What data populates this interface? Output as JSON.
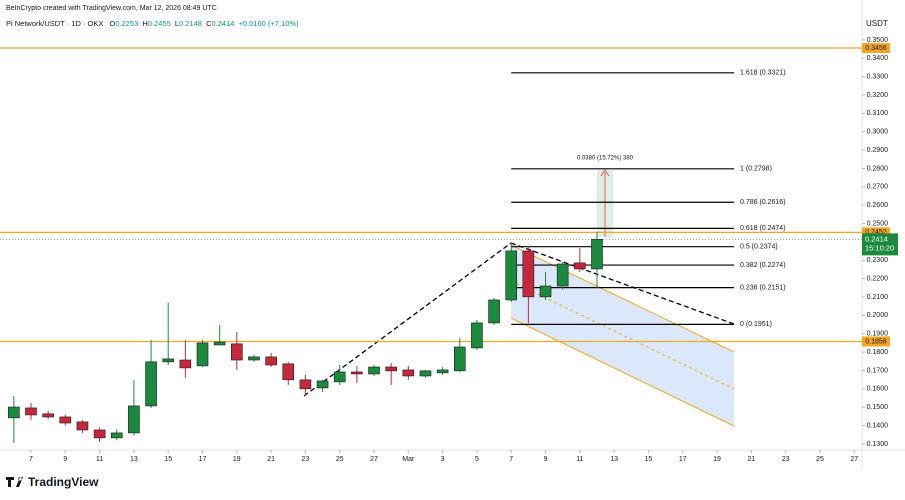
{
  "credit": "BeInCrypto created with TradingView.com, Mar 12, 2026 08:49 UTC",
  "symbol": "Pi Network/USDT · 1D · OKX",
  "logo": "TradingView",
  "chart_data": {
    "type": "candlestick",
    "currency": "USDT",
    "ohlc_labels": [
      "O",
      "H",
      "L",
      "C"
    ],
    "change": "+0.0160 (+7.10%)",
    "countdown": "15:10:20",
    "up_color": "#1b8a3e",
    "down_color": "#c4283c",
    "level_color": "#f5a623",
    "x": [
      "Feb 6",
      "Feb 7",
      "Feb 8",
      "Feb 9",
      "Feb 10",
      "Feb 11",
      "Feb 12",
      "Feb 13",
      "Feb 14",
      "Feb 15",
      "Feb 16",
      "Feb 17",
      "Feb 18",
      "Feb 19",
      "Feb 20",
      "Feb 21",
      "Feb 22",
      "Feb 23",
      "Feb 24",
      "Feb 25",
      "Feb 26",
      "Feb 27",
      "Feb 28",
      "Mar 1",
      "Mar 2",
      "Mar 3",
      "Mar 4",
      "Mar 5",
      "Mar 6",
      "Mar 7",
      "Mar 8",
      "Mar 9",
      "Mar 10",
      "Mar 11",
      "Mar 12"
    ],
    "open": [
      0.1442,
      0.1496,
      0.1464,
      0.1447,
      0.142,
      0.1376,
      0.1333,
      0.136,
      0.1507,
      0.1747,
      0.1757,
      0.1725,
      0.1839,
      0.1845,
      0.1757,
      0.1774,
      0.1736,
      0.1649,
      0.1605,
      0.1638,
      0.1692,
      0.1681,
      0.1719,
      0.1703,
      0.167,
      0.1687,
      0.1698,
      0.1823,
      0.1959,
      0.2084,
      0.2351,
      0.2101,
      0.216,
      0.2286,
      0.2253
    ],
    "high": [
      0.1561,
      0.1523,
      0.148,
      0.146,
      0.143,
      0.139,
      0.138,
      0.1649,
      0.1866,
      0.2068,
      0.1866,
      0.1866,
      0.1948,
      0.191,
      0.1785,
      0.1796,
      0.1747,
      0.1676,
      0.1649,
      0.173,
      0.1725,
      0.173,
      0.1741,
      0.1725,
      0.1703,
      0.1719,
      0.1877,
      0.1975,
      0.2095,
      0.2395,
      0.2378,
      0.2237,
      0.2291,
      0.2367,
      0.2455
    ],
    "low": [
      0.1306,
      0.1431,
      0.1435,
      0.14,
      0.136,
      0.131,
      0.132,
      0.1344,
      0.1496,
      0.173,
      0.166,
      0.1719,
      0.1839,
      0.1703,
      0.1747,
      0.1719,
      0.1621,
      0.1561,
      0.1583,
      0.1621,
      0.1632,
      0.167,
      0.1621,
      0.1649,
      0.166,
      0.1676,
      0.1692,
      0.1812,
      0.1948,
      0.2073,
      0.1959,
      0.2084,
      0.2139,
      0.2237,
      0.2148
    ],
    "close": [
      0.1501,
      0.1458,
      0.1447,
      0.1414,
      0.1376,
      0.1333,
      0.136,
      0.1507,
      0.1747,
      0.1763,
      0.1714,
      0.185,
      0.1855,
      0.1757,
      0.1774,
      0.173,
      0.1649,
      0.16,
      0.1643,
      0.1692,
      0.1681,
      0.1719,
      0.1698,
      0.167,
      0.1698,
      0.1703,
      0.1828,
      0.1959,
      0.2084,
      0.2351,
      0.2101,
      0.216,
      0.228,
      0.2253,
      0.2414
    ],
    "xlim": [
      "Feb 5",
      "Mar 28"
    ],
    "xticks": [
      {
        "value": "Feb 7",
        "label": "7"
      },
      {
        "value": "Feb 9",
        "label": "9"
      },
      {
        "value": "Feb 11",
        "label": "11"
      },
      {
        "value": "Feb 13",
        "label": "13"
      },
      {
        "value": "Feb 15",
        "label": "15"
      },
      {
        "value": "Feb 17",
        "label": "17"
      },
      {
        "value": "Feb 19",
        "label": "19"
      },
      {
        "value": "Feb 21",
        "label": "21"
      },
      {
        "value": "Feb 23",
        "label": "23"
      },
      {
        "value": "Feb 25",
        "label": "25"
      },
      {
        "value": "Feb 27",
        "label": "27"
      },
      {
        "value": "Mar 1",
        "label": "Mar"
      },
      {
        "value": "Mar 3",
        "label": "3"
      },
      {
        "value": "Mar 5",
        "label": "5"
      },
      {
        "value": "Mar 7",
        "label": "7"
      },
      {
        "value": "Mar 9",
        "label": "9"
      },
      {
        "value": "Mar 11",
        "label": "11"
      },
      {
        "value": "Mar 13",
        "label": "13"
      },
      {
        "value": "Mar 15",
        "label": "15"
      },
      {
        "value": "Mar 17",
        "label": "17"
      },
      {
        "value": "Mar 19",
        "label": "19"
      },
      {
        "value": "Mar 21",
        "label": "21"
      },
      {
        "value": "Mar 23",
        "label": "23"
      },
      {
        "value": "Mar 25",
        "label": "25"
      },
      {
        "value": "Mar 27",
        "label": "27"
      }
    ],
    "ylim": [
      0.1267,
      0.3554
    ],
    "yticks": [
      {
        "value": 0.13,
        "label": "0.1300"
      },
      {
        "value": 0.14,
        "label": "0.1400"
      },
      {
        "value": 0.15,
        "label": "0.1500"
      },
      {
        "value": 0.16,
        "label": "0.1600"
      },
      {
        "value": 0.17,
        "label": "0.1700"
      },
      {
        "value": 0.18,
        "label": "0.1800"
      },
      {
        "value": 0.19,
        "label": "0.1900"
      },
      {
        "value": 0.2,
        "label": "0.2000"
      },
      {
        "value": 0.21,
        "label": "0.2100"
      },
      {
        "value": 0.22,
        "label": "0.2200"
      },
      {
        "value": 0.23,
        "label": "0.2300"
      },
      {
        "value": 0.24,
        "label": "0.2400"
      },
      {
        "value": 0.25,
        "label": "0.2500"
      },
      {
        "value": 0.26,
        "label": "0.2600"
      },
      {
        "value": 0.27,
        "label": "0.2700"
      },
      {
        "value": 0.28,
        "label": "0.2800"
      },
      {
        "value": 0.29,
        "label": "0.2900"
      },
      {
        "value": 0.3,
        "label": "0.3000"
      },
      {
        "value": 0.31,
        "label": "0.3100"
      },
      {
        "value": 0.32,
        "label": "0.3200"
      },
      {
        "value": 0.33,
        "label": "0.3300"
      },
      {
        "value": 0.34,
        "label": "0.3400"
      },
      {
        "value": 0.35,
        "label": "0.3500"
      }
    ],
    "levels": [
      0.3456,
      0.2452,
      0.1858
    ],
    "fib_levels": [
      {
        "value": 0.3321,
        "label": "1.618 (0.3321)"
      },
      {
        "value": 0.2798,
        "label": "1 (0.2798)"
      },
      {
        "value": 0.2616,
        "label": "0.786 (0.2616)"
      },
      {
        "value": 0.2474,
        "label": "0.618 (0.2474)"
      },
      {
        "value": 0.2374,
        "label": "0.5 (0.2374)"
      },
      {
        "value": 0.2274,
        "label": "0.382 (0.2274)"
      },
      {
        "value": 0.2151,
        "label": "0.236 (0.2151)"
      },
      {
        "value": 0.1951,
        "label": "0 (0.1951)"
      }
    ],
    "measure_label": "0.0380 (15.72%) 380"
  }
}
